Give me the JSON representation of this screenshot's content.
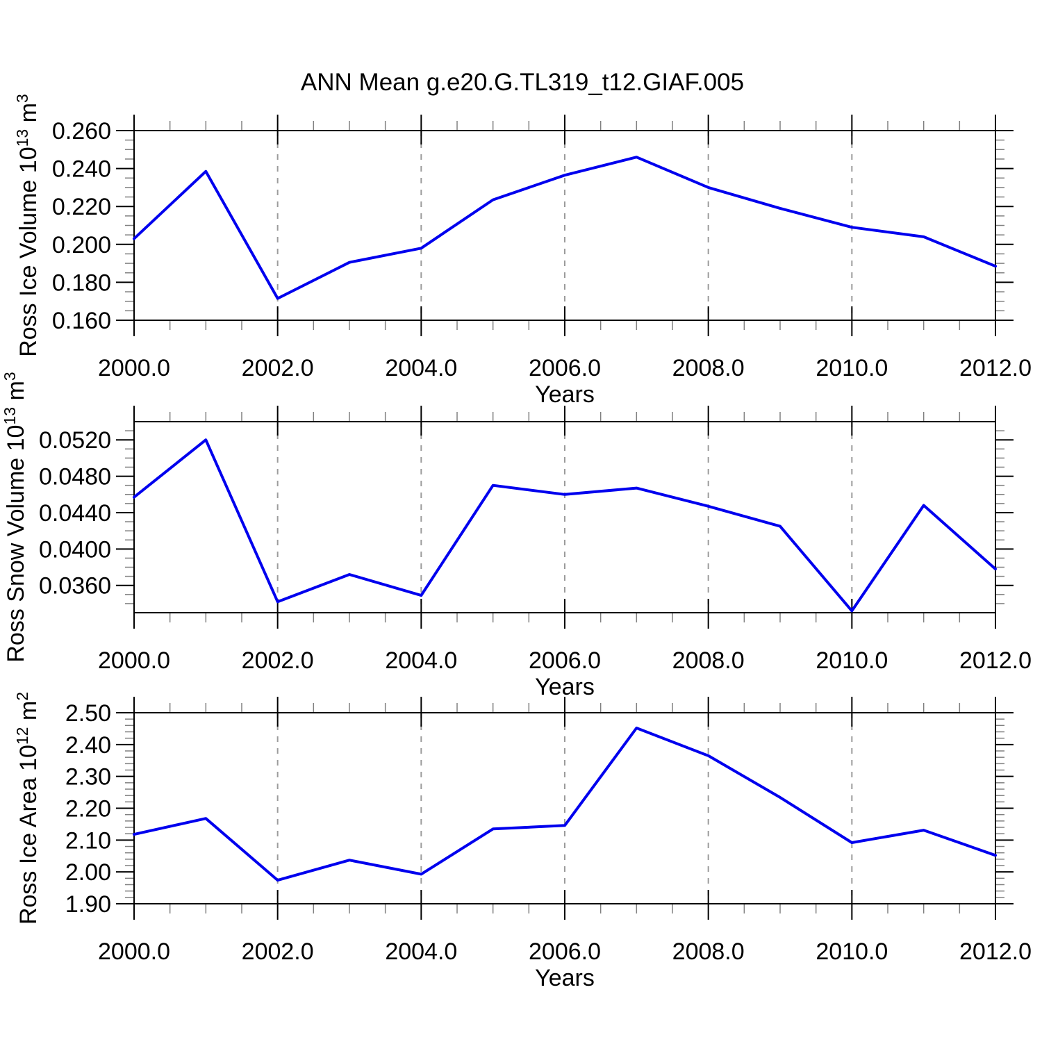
{
  "title": "ANN Mean g.e20.G.TL319_t12.GIAF.005",
  "style": {
    "line_color": "#0000ee",
    "grid_color": "#9b9b9b",
    "axis_color": "#000000",
    "major_tick_color": "#000000",
    "minor_tick_color": "#808080",
    "text_color": "#000000",
    "background": "#ffffff"
  },
  "x_axis": {
    "label": "Years",
    "range": [
      2000,
      2012
    ],
    "major_ticks": [
      2000,
      2002,
      2004,
      2006,
      2008,
      2010,
      2012
    ],
    "tick_labels": [
      "2000.0",
      "2002.0",
      "2004.0",
      "2006.0",
      "2008.0",
      "2010.0",
      "2012.0"
    ],
    "minor_step": 0.5,
    "gridline_years": [
      2002,
      2004,
      2006,
      2008,
      2010
    ]
  },
  "chart_data": [
    {
      "type": "line",
      "name": "ross-ice-volume",
      "y_label": "Ross Ice Volume 10^13 m^3",
      "y_label_parts": [
        {
          "text": "Ross Ice Volume 10"
        },
        {
          "text": "13",
          "sup": true
        },
        {
          "text": " m"
        },
        {
          "text": "3",
          "sup": true
        }
      ],
      "x_label": "Years",
      "x": [
        2000,
        2001,
        2002,
        2003,
        2004,
        2005,
        2006,
        2007,
        2008,
        2009,
        2010,
        2011,
        2012
      ],
      "values": [
        0.203,
        0.2385,
        0.1715,
        0.1905,
        0.198,
        0.2235,
        0.2365,
        0.246,
        0.23,
        0.219,
        0.209,
        0.204,
        0.1885
      ],
      "ylim": [
        0.16,
        0.26
      ],
      "y_major_ticks": [
        0.16,
        0.18,
        0.2,
        0.22,
        0.24,
        0.26
      ],
      "y_tick_labels": [
        "0.160",
        "0.180",
        "0.200",
        "0.220",
        "0.240",
        "0.260"
      ],
      "y_minor_step": 0.005
    },
    {
      "type": "line",
      "name": "ross-snow-volume",
      "y_label": "Ross Snow Volume 10^13 m^3",
      "y_label_parts": [
        {
          "text": "Ross Snow Volume 10"
        },
        {
          "text": "13",
          "sup": true
        },
        {
          "text": " m"
        },
        {
          "text": "3",
          "sup": true
        }
      ],
      "x_label": "Years",
      "x": [
        2000,
        2001,
        2002,
        2003,
        2004,
        2005,
        2006,
        2007,
        2008,
        2009,
        2010,
        2011,
        2012
      ],
      "values": [
        0.0457,
        0.052,
        0.0342,
        0.0372,
        0.0349,
        0.047,
        0.046,
        0.0467,
        0.0447,
        0.0425,
        0.0332,
        0.0448,
        0.0378
      ],
      "ylim": [
        0.033,
        0.054
      ],
      "y_major_ticks": [
        0.036,
        0.04,
        0.044,
        0.048,
        0.052
      ],
      "y_tick_labels": [
        "0.0360",
        "0.0400",
        "0.0440",
        "0.0480",
        "0.0520"
      ],
      "y_minor_step": 0.001
    },
    {
      "type": "line",
      "name": "ross-ice-area",
      "y_label": "Ross Ice Area 10^12 m^2",
      "y_label_parts": [
        {
          "text": "Ross Ice Area 10"
        },
        {
          "text": "12",
          "sup": true
        },
        {
          "text": " m"
        },
        {
          "text": "2",
          "sup": true
        }
      ],
      "x_label": "Years",
      "x": [
        2000,
        2001,
        2002,
        2003,
        2004,
        2005,
        2006,
        2007,
        2008,
        2009,
        2010,
        2011,
        2012
      ],
      "values": [
        2.118,
        2.168,
        1.974,
        2.037,
        1.993,
        2.135,
        2.146,
        2.452,
        2.365,
        2.234,
        2.092,
        2.131,
        2.052
      ],
      "ylim": [
        1.9,
        2.5
      ],
      "y_major_ticks": [
        1.9,
        2.0,
        2.1,
        2.2,
        2.3,
        2.4,
        2.5
      ],
      "y_tick_labels": [
        "1.90",
        "2.00",
        "2.10",
        "2.20",
        "2.30",
        "2.40",
        "2.50"
      ],
      "y_minor_step": 0.02
    }
  ]
}
